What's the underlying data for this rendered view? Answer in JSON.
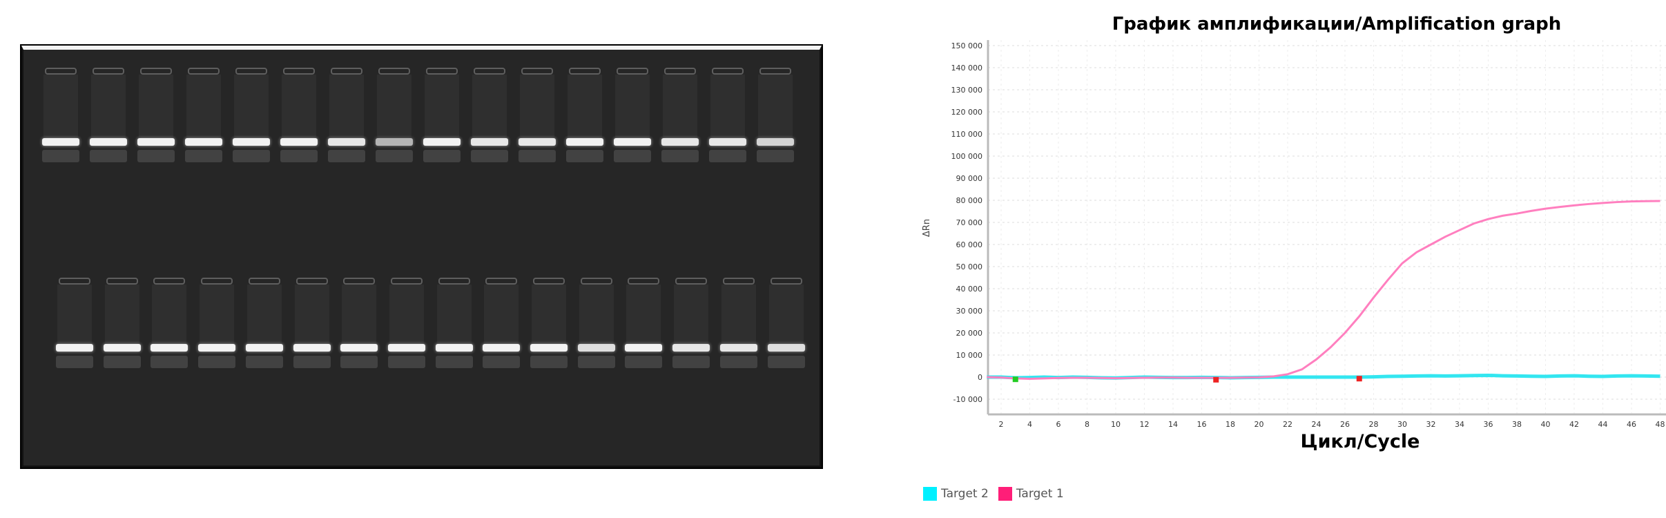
{
  "gel": {
    "rows": 2,
    "lanes_per_row": 16,
    "band_brightness": [
      [
        1,
        1,
        1,
        1,
        1,
        1,
        0.95,
        0.7,
        1,
        0.95,
        0.95,
        1,
        1,
        0.95,
        0.95,
        0.85
      ],
      [
        1,
        1,
        1,
        1,
        1,
        1,
        1,
        1,
        1,
        1,
        1,
        0.9,
        1,
        0.95,
        0.95,
        0.9
      ]
    ]
  },
  "chart_data": {
    "type": "line",
    "title": "График амплификации/Amplification graph",
    "xlabel": "Цикл/Cycle",
    "ylabel": "ΔRn",
    "xlim": [
      1,
      48.4
    ],
    "ylim": [
      -15000,
      152000
    ],
    "grid": true,
    "xticks": [
      2,
      4,
      6,
      8,
      10,
      12,
      14,
      16,
      18,
      20,
      22,
      24,
      26,
      28,
      30,
      32,
      34,
      36,
      38,
      40,
      42,
      44,
      46,
      48
    ],
    "yticks": [
      -10000,
      0,
      10000,
      20000,
      30000,
      40000,
      50000,
      60000,
      70000,
      80000,
      90000,
      100000,
      110000,
      120000,
      130000,
      140000,
      150000
    ],
    "ytick_labels": [
      "-10 000",
      "0",
      "10 000",
      "20 000",
      "30 000",
      "40 000",
      "50 000",
      "60 000",
      "70 000",
      "80 000",
      "90 000",
      "100 000",
      "110 000",
      "120 000",
      "130 000",
      "140 000",
      "150 000"
    ],
    "x": [
      1,
      2,
      3,
      4,
      5,
      6,
      7,
      8,
      9,
      10,
      11,
      12,
      13,
      14,
      15,
      16,
      17,
      18,
      19,
      20,
      21,
      22,
      23,
      24,
      25,
      26,
      27,
      28,
      29,
      30,
      31,
      32,
      33,
      34,
      35,
      36,
      37,
      38,
      39,
      40,
      41,
      42,
      43,
      44,
      45,
      46,
      47,
      48
    ],
    "series": [
      {
        "name": "Target 2",
        "color": "#33e6f0",
        "values": [
          0,
          0,
          -300,
          -200,
          0,
          -200,
          0,
          -100,
          -300,
          -400,
          -200,
          0,
          -100,
          -200,
          -200,
          -100,
          -200,
          -300,
          -200,
          -100,
          0,
          0,
          0,
          0,
          0,
          0,
          0,
          100,
          300,
          400,
          500,
          600,
          500,
          600,
          700,
          800,
          600,
          500,
          400,
          300,
          500,
          600,
          400,
          300,
          500,
          600,
          500,
          400
        ]
      },
      {
        "name": "Target 1",
        "color": "#ff7fbf",
        "values": [
          0,
          -200,
          -600,
          -800,
          -600,
          -400,
          -300,
          -300,
          -400,
          -500,
          -400,
          -300,
          -200,
          -200,
          -300,
          -300,
          -300,
          -300,
          -200,
          -100,
          300,
          1300,
          3500,
          8000,
          13500,
          20000,
          27500,
          36000,
          44000,
          51500,
          56500,
          60000,
          63500,
          66500,
          69500,
          71500,
          73000,
          74000,
          75200,
          76200,
          77000,
          77700,
          78300,
          78800,
          79200,
          79500,
          79600,
          79700
        ]
      }
    ],
    "markers": [
      {
        "cycle": 3,
        "value": -1000,
        "color": "#22cc22"
      },
      {
        "cycle": 17,
        "value": -1200,
        "color": "#ee2222"
      },
      {
        "cycle": 27,
        "value": -700,
        "color": "#ee2222"
      }
    ],
    "legend": {
      "placement": "bottom-left",
      "items": [
        "Target 2",
        "Target 1"
      ],
      "colors": [
        "#00f0ff",
        "#ff1e78"
      ]
    }
  }
}
